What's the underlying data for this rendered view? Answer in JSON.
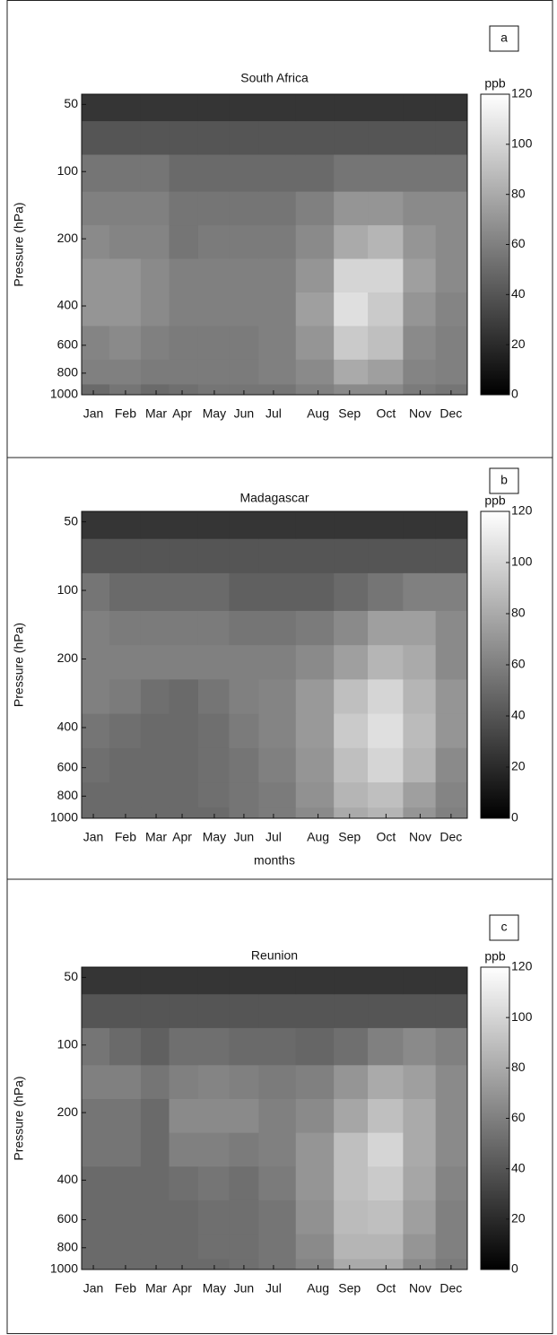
{
  "chart_data": [
    {
      "type": "contour",
      "label": "a",
      "title": "South Africa",
      "ylabel": "Pressure (hPa)",
      "yscale": "log",
      "ylim": [
        1000,
        45
      ],
      "yticks": [
        50,
        100,
        200,
        400,
        600,
        800,
        1000
      ],
      "xlim": [
        0.64,
        12.5
      ],
      "xticks": [
        {
          "value": 1,
          "label": "Jan"
        },
        {
          "value": 1.99,
          "label": "Feb"
        },
        {
          "value": 2.93,
          "label": "Mar"
        },
        {
          "value": 3.73,
          "label": "Apr"
        },
        {
          "value": 4.72,
          "label": "May"
        },
        {
          "value": 5.63,
          "label": "Jun"
        },
        {
          "value": 6.54,
          "label": "Jul"
        },
        {
          "value": 7.91,
          "label": "Aug"
        },
        {
          "value": 8.88,
          "label": "Sep"
        },
        {
          "value": 10,
          "label": "Oct"
        },
        {
          "value": 11.05,
          "label": "Nov"
        },
        {
          "value": 12,
          "label": "Dec"
        }
      ],
      "levels": [
        1000,
        800,
        600,
        400,
        300,
        200,
        150,
        100,
        70,
        50
      ],
      "z": [
        [
          50,
          55,
          50,
          52,
          55,
          55,
          55,
          60,
          65,
          65,
          58,
          55
        ],
        [
          60,
          60,
          58,
          58,
          58,
          58,
          60,
          65,
          80,
          75,
          62,
          60
        ],
        [
          62,
          65,
          60,
          58,
          58,
          58,
          60,
          70,
          95,
          90,
          65,
          60
        ],
        [
          70,
          70,
          65,
          60,
          60,
          60,
          60,
          75,
          105,
          95,
          70,
          62
        ],
        [
          70,
          70,
          65,
          60,
          60,
          60,
          60,
          70,
          100,
          100,
          75,
          65
        ],
        [
          65,
          62,
          62,
          55,
          58,
          58,
          58,
          65,
          80,
          85,
          70,
          65
        ],
        [
          60,
          60,
          60,
          55,
          55,
          55,
          55,
          60,
          70,
          70,
          65,
          65
        ],
        [
          55,
          55,
          55,
          50,
          50,
          50,
          50,
          50,
          55,
          55,
          55,
          55
        ],
        [
          40,
          40,
          40,
          40,
          40,
          40,
          40,
          40,
          40,
          40,
          40,
          40
        ],
        [
          25,
          25,
          25,
          25,
          25,
          25,
          25,
          25,
          25,
          25,
          25,
          25
        ]
      ],
      "colorbar": {
        "label": "ppb",
        "lim": [
          0,
          120
        ],
        "ticks": [
          0,
          20,
          40,
          60,
          80,
          100,
          120
        ]
      }
    },
    {
      "type": "contour",
      "label": "b",
      "title": "Madagascar",
      "ylabel": "Pressure (hPa)",
      "xlabel": "months",
      "yscale": "log",
      "ylim": [
        1000,
        45
      ],
      "yticks": [
        50,
        100,
        200,
        400,
        600,
        800,
        1000
      ],
      "xlim": [
        0.64,
        12.5
      ],
      "xticks": [
        {
          "value": 1,
          "label": "Jan"
        },
        {
          "value": 1.99,
          "label": "Feb"
        },
        {
          "value": 2.93,
          "label": "Mar"
        },
        {
          "value": 3.73,
          "label": "Apr"
        },
        {
          "value": 4.72,
          "label": "May"
        },
        {
          "value": 5.63,
          "label": "Jun"
        },
        {
          "value": 6.54,
          "label": "Jul"
        },
        {
          "value": 7.91,
          "label": "Aug"
        },
        {
          "value": 8.88,
          "label": "Sep"
        },
        {
          "value": 10,
          "label": "Oct"
        },
        {
          "value": 11.05,
          "label": "Nov"
        },
        {
          "value": 12,
          "label": "Dec"
        }
      ],
      "levels": [
        1000,
        800,
        600,
        400,
        300,
        200,
        150,
        100,
        70,
        50
      ],
      "z": [
        [
          50,
          50,
          50,
          50,
          50,
          55,
          58,
          65,
          80,
          85,
          70,
          60
        ],
        [
          50,
          50,
          50,
          50,
          52,
          55,
          58,
          68,
          85,
          90,
          75,
          62
        ],
        [
          52,
          50,
          50,
          50,
          52,
          55,
          60,
          70,
          90,
          100,
          85,
          65
        ],
        [
          55,
          52,
          50,
          50,
          52,
          58,
          62,
          72,
          95,
          105,
          88,
          70
        ],
        [
          60,
          58,
          52,
          50,
          55,
          60,
          62,
          72,
          90,
          100,
          85,
          70
        ],
        [
          60,
          60,
          60,
          60,
          60,
          60,
          60,
          65,
          75,
          85,
          80,
          65
        ],
        [
          60,
          58,
          58,
          58,
          58,
          55,
          55,
          58,
          65,
          75,
          75,
          65
        ],
        [
          55,
          50,
          50,
          50,
          50,
          45,
          45,
          45,
          50,
          55,
          60,
          60
        ],
        [
          40,
          40,
          40,
          40,
          40,
          40,
          40,
          40,
          40,
          40,
          40,
          40
        ],
        [
          25,
          25,
          25,
          25,
          25,
          25,
          25,
          25,
          25,
          25,
          25,
          25
        ]
      ],
      "colorbar": {
        "label": "ppb",
        "lim": [
          0,
          120
        ],
        "ticks": [
          0,
          20,
          40,
          60,
          80,
          100,
          120
        ]
      }
    },
    {
      "type": "contour",
      "label": "c",
      "title": "Reunion",
      "ylabel": "Pressure (hPa)",
      "yscale": "log",
      "ylim": [
        1000,
        45
      ],
      "yticks": [
        50,
        100,
        200,
        400,
        600,
        800,
        1000
      ],
      "xlim": [
        0.64,
        12.5
      ],
      "xticks": [
        {
          "value": 1,
          "label": "Jan"
        },
        {
          "value": 1.99,
          "label": "Feb"
        },
        {
          "value": 2.93,
          "label": "Mar"
        },
        {
          "value": 3.73,
          "label": "Apr"
        },
        {
          "value": 4.72,
          "label": "May"
        },
        {
          "value": 5.63,
          "label": "Jun"
        },
        {
          "value": 6.54,
          "label": "Jul"
        },
        {
          "value": 7.91,
          "label": "Aug"
        },
        {
          "value": 8.88,
          "label": "Sep"
        },
        {
          "value": 10,
          "label": "Oct"
        },
        {
          "value": 11.05,
          "label": "Nov"
        },
        {
          "value": 12,
          "label": "Dec"
        }
      ],
      "levels": [
        1000,
        800,
        600,
        400,
        300,
        200,
        150,
        100,
        70,
        50
      ],
      "z": [
        [
          50,
          50,
          50,
          50,
          50,
          52,
          55,
          62,
          80,
          80,
          65,
          58
        ],
        [
          50,
          50,
          50,
          50,
          52,
          52,
          55,
          65,
          85,
          85,
          70,
          60
        ],
        [
          50,
          50,
          50,
          50,
          52,
          52,
          55,
          68,
          88,
          90,
          75,
          60
        ],
        [
          50,
          50,
          50,
          52,
          55,
          52,
          58,
          70,
          90,
          95,
          78,
          62
        ],
        [
          55,
          55,
          50,
          60,
          60,
          58,
          60,
          70,
          90,
          100,
          80,
          65
        ],
        [
          55,
          55,
          50,
          65,
          65,
          65,
          60,
          65,
          78,
          90,
          80,
          65
        ],
        [
          60,
          60,
          55,
          60,
          62,
          60,
          58,
          60,
          70,
          80,
          75,
          65
        ],
        [
          55,
          50,
          45,
          52,
          52,
          50,
          50,
          48,
          52,
          60,
          65,
          60
        ],
        [
          40,
          40,
          40,
          40,
          40,
          40,
          40,
          40,
          40,
          40,
          40,
          40
        ],
        [
          25,
          25,
          25,
          25,
          25,
          25,
          25,
          25,
          25,
          25,
          25,
          25
        ]
      ],
      "colorbar": {
        "label": "ppb",
        "lim": [
          0,
          120
        ],
        "ticks": [
          0,
          20,
          40,
          60,
          80,
          100,
          120
        ]
      }
    }
  ]
}
